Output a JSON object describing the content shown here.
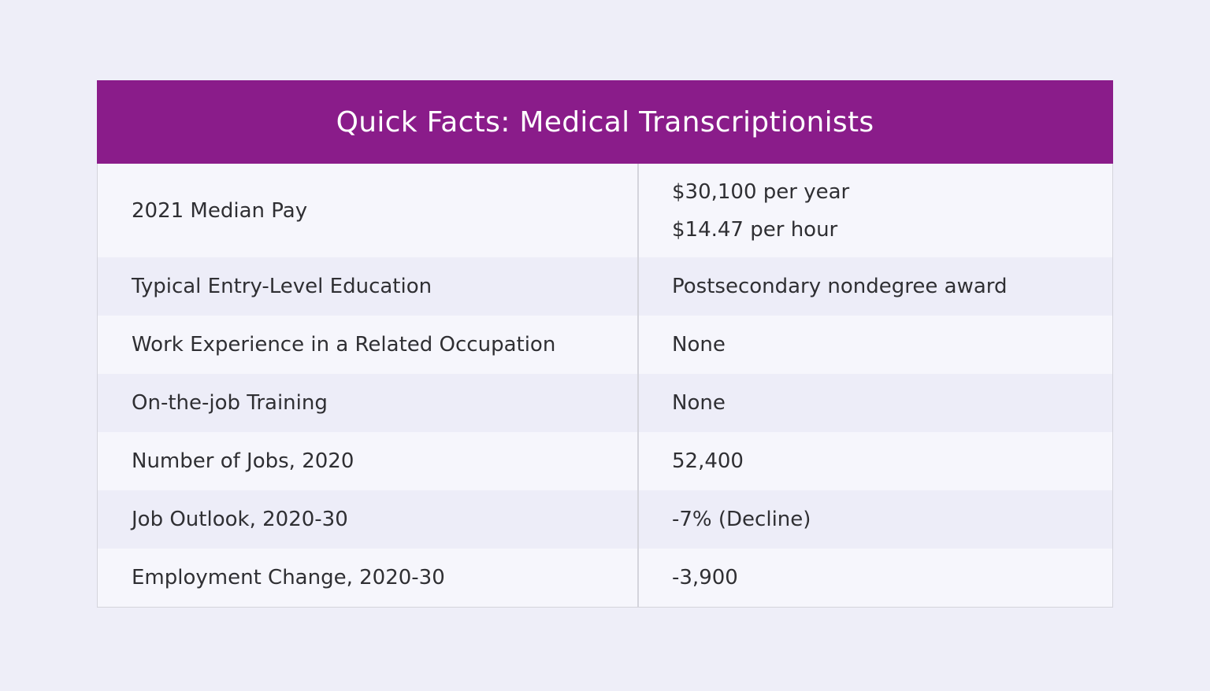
{
  "title": "Quick Facts: Medical Transcriptionists",
  "rows": [
    {
      "label": "2021 Median Pay",
      "value_lines": [
        "$30,100 per year",
        "$14.47 per hour"
      ]
    },
    {
      "label": "Typical Entry-Level Education",
      "value": "Postsecondary nondegree award"
    },
    {
      "label": "Work Experience in a Related Occupation",
      "value": "None"
    },
    {
      "label": "On-the-job Training",
      "value": "None"
    },
    {
      "label": "Number of Jobs, 2020",
      "value": "52,400"
    },
    {
      "label": "Job Outlook, 2020-30",
      "value": "-7% (Decline)"
    },
    {
      "label": "Employment Change, 2020-30",
      "value": "-3,900"
    }
  ],
  "colors": {
    "background": "#eeeef8",
    "title_bar": "#8a1c8a",
    "title_text": "#ffffff",
    "row_light": "#f6f6fc",
    "row_alt": "#ededf8",
    "text": "#2f2f33",
    "divider": "#d4d4dc"
  }
}
